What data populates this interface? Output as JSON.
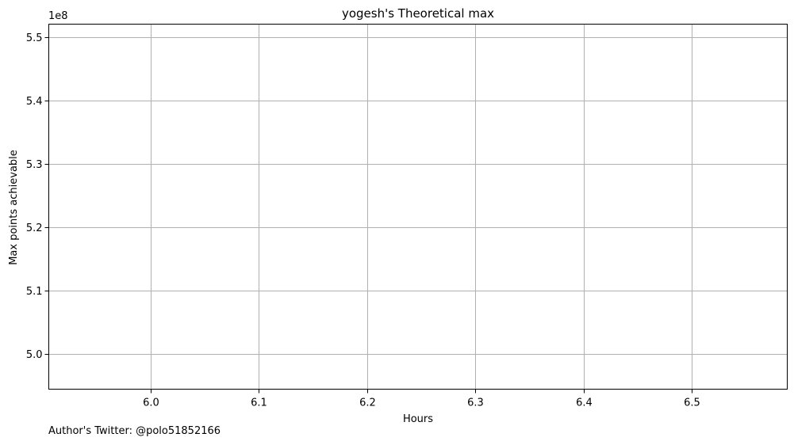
{
  "chart_data": {
    "type": "line",
    "title": "yogesh's Theoretical max",
    "xlabel": "Hours",
    "ylabel": "Max points achievable",
    "y_multiplier_label": "1e8",
    "xlim": [
      5.906,
      6.588
    ],
    "ylim": [
      4.945,
      5.52
    ],
    "x_ticks": [
      6.0,
      6.1,
      6.2,
      6.3,
      6.4,
      6.5
    ],
    "x_tick_labels": [
      "6.0",
      "6.1",
      "6.2",
      "6.3",
      "6.4",
      "6.5"
    ],
    "y_ticks": [
      5.0,
      5.1,
      5.2,
      5.3,
      5.4,
      5.5
    ],
    "y_tick_labels": [
      "5.0",
      "5.1",
      "5.2",
      "5.3",
      "5.4",
      "5.5"
    ],
    "grid": true,
    "series": []
  },
  "footer": {
    "author_note": "Author's Twitter: @polo51852166"
  }
}
